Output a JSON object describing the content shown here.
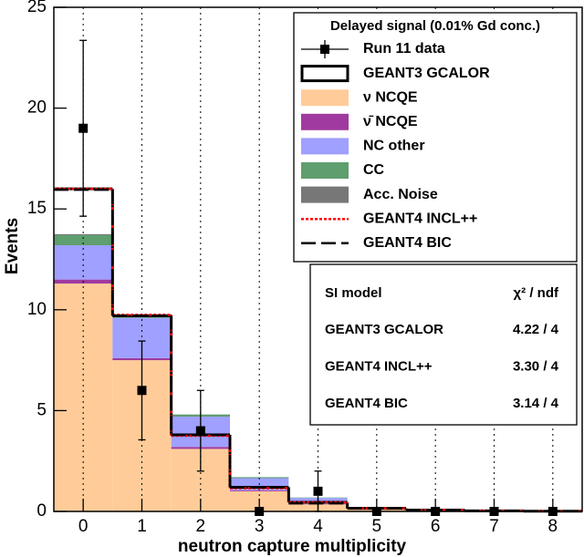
{
  "chart_data": {
    "type": "histogram",
    "xlabel": "neutron capture multiplicity",
    "ylabel": "Events",
    "xlim": [
      -0.5,
      8.5
    ],
    "ylim": [
      0,
      25
    ],
    "xticks": [
      0,
      1,
      2,
      3,
      4,
      5,
      6,
      7,
      8
    ],
    "yticks": [
      0,
      5,
      10,
      15,
      20,
      25
    ],
    "grid": "x",
    "bins": [
      -0.5,
      0.5,
      1.5,
      2.5,
      3.5,
      4.5,
      5.5,
      6.5,
      7.5,
      8.5
    ],
    "x": [
      0,
      1,
      2,
      3,
      4,
      5,
      6,
      7,
      8
    ],
    "legend_title": "Delayed signal (0.01% Gd conc.)",
    "series": [
      {
        "name": "Run 11 data",
        "kind": "points",
        "color": "#000000",
        "values": [
          19,
          6,
          4,
          0,
          1,
          0,
          0,
          0,
          0
        ],
        "errors": [
          4.36,
          2.45,
          2,
          0,
          1,
          0,
          0,
          0,
          0
        ]
      },
      {
        "name": "GEANT3 GCALOR",
        "kind": "step",
        "color": "#000000",
        "style": "solid",
        "values": [
          16.0,
          9.7,
          3.8,
          1.2,
          0.45,
          0.15,
          0.07,
          0.03,
          0.01
        ]
      },
      {
        "name": "ν NCQE",
        "kind": "stack",
        "color": "#ffcc99",
        "values": [
          11.3,
          7.5,
          3.1,
          1.0,
          0.35,
          0.1,
          0.05,
          0.02,
          0.01
        ]
      },
      {
        "name": "ν̄ NCQE",
        "kind": "stack",
        "color": "#a03aa0",
        "values": [
          0.2,
          0.1,
          0.1,
          0.05,
          0.02,
          0.01,
          0,
          0,
          0
        ]
      },
      {
        "name": "NC other",
        "kind": "stack",
        "color": "#9fa0ff",
        "values": [
          1.7,
          2.0,
          1.5,
          0.6,
          0.3,
          0.1,
          0.05,
          0.02,
          0.02
        ]
      },
      {
        "name": "CC",
        "kind": "stack",
        "color": "#5f9e6e",
        "values": [
          0.5,
          0.1,
          0.1,
          0.05,
          0.02,
          0.01,
          0,
          0,
          0
        ]
      },
      {
        "name": "Acc. Noise",
        "kind": "stack",
        "color": "#777777",
        "values": [
          0.05,
          0.02,
          0.01,
          0,
          0,
          0,
          0,
          0,
          0
        ]
      },
      {
        "name": "GEANT4 INCL++",
        "kind": "step",
        "color": "#ff0000",
        "style": "dotted",
        "values": [
          16.0,
          9.75,
          3.75,
          1.15,
          0.45,
          0.15,
          0.07,
          0.03,
          0.01
        ]
      },
      {
        "name": "GEANT4 BIC",
        "kind": "step",
        "color": "#000000",
        "style": "dashed",
        "values": [
          15.95,
          9.7,
          3.8,
          1.2,
          0.4,
          0.15,
          0.07,
          0.03,
          0.01
        ]
      }
    ],
    "table": {
      "header": [
        "SI model",
        "χ² / ndf"
      ],
      "rows": [
        [
          "GEANT3 GCALOR",
          "4.22 / 4"
        ],
        [
          "GEANT4 INCL++",
          "3.30 / 4"
        ],
        [
          "GEANT4 BIC",
          "3.14 / 4"
        ]
      ]
    }
  }
}
